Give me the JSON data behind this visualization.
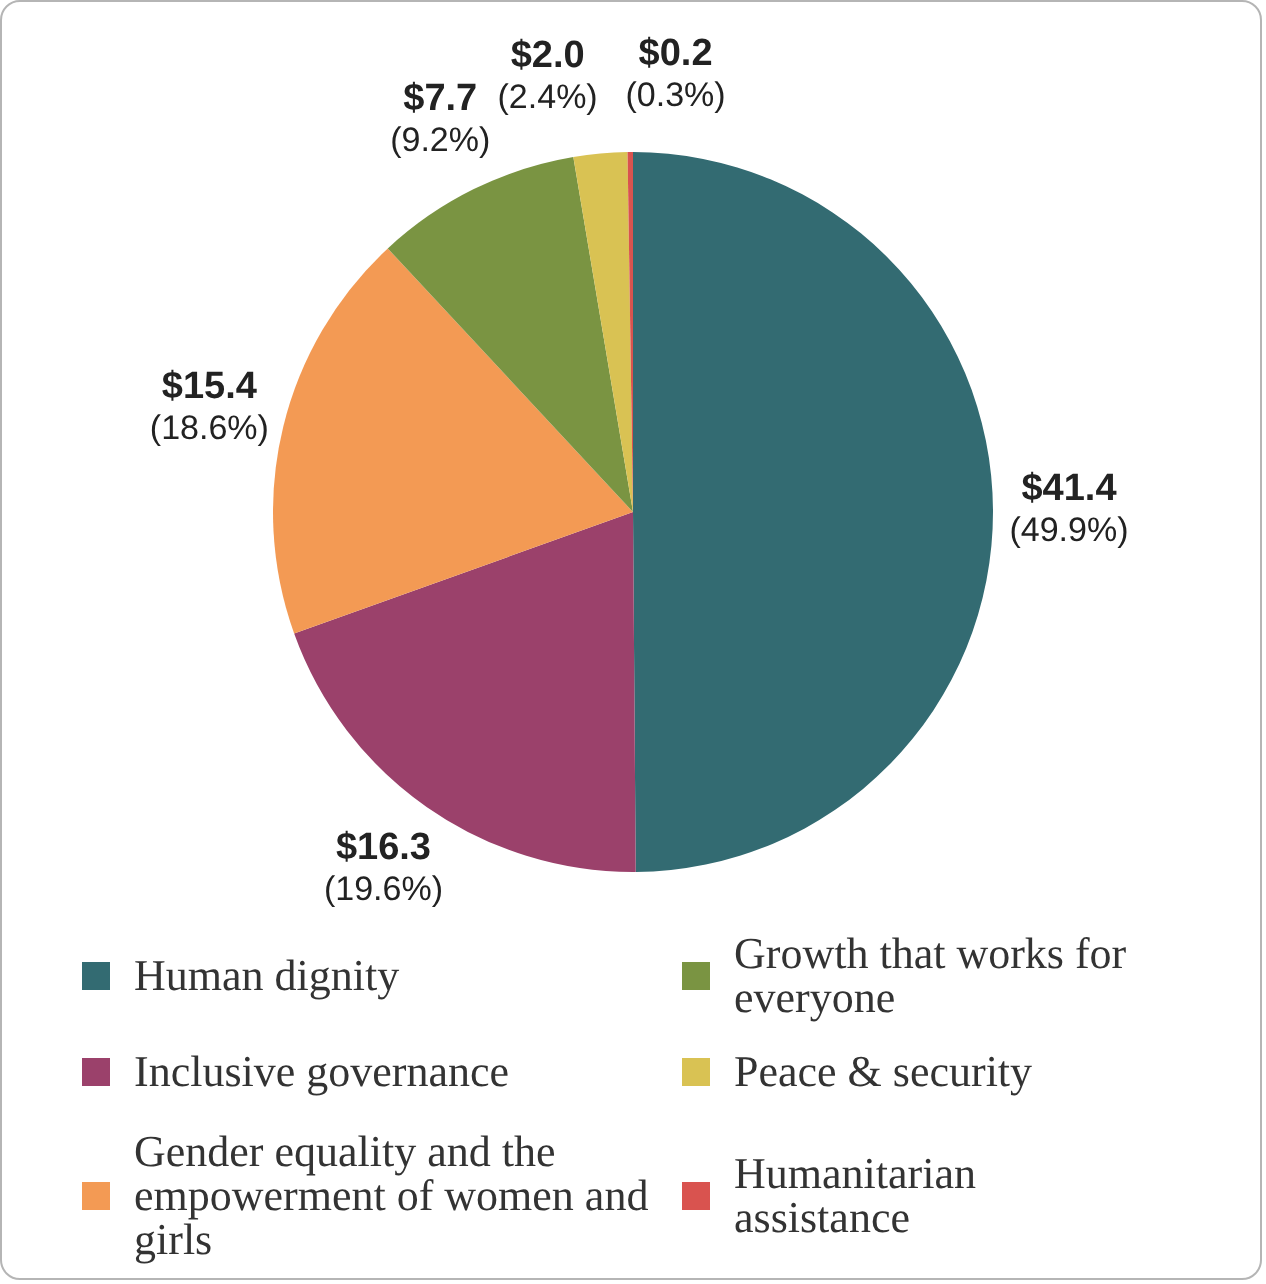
{
  "chart_data": {
    "type": "pie",
    "categories": [
      "Human dignity",
      "Inclusive governance",
      "Gender equality and the empowerment of women and girls",
      "Growth that works for everyone",
      "Peace & security",
      "Humanitarian assistance"
    ],
    "values": [
      41.4,
      16.3,
      15.4,
      7.7,
      2.0,
      0.2
    ],
    "colors": [
      "#336b72",
      "#9b416b",
      "#f39a54",
      "#7a9442",
      "#d9c253",
      "#d9534f"
    ],
    "value_labels": [
      "$41.4\n(49.9%)",
      "$16.3\n(19.6%)",
      "$15.4\n(18.6%)",
      "$7.7\n(9.2%)",
      "$2.0\n(2.4%)",
      "$0.2\n(0.3%)"
    ],
    "legend": "bottom"
  }
}
